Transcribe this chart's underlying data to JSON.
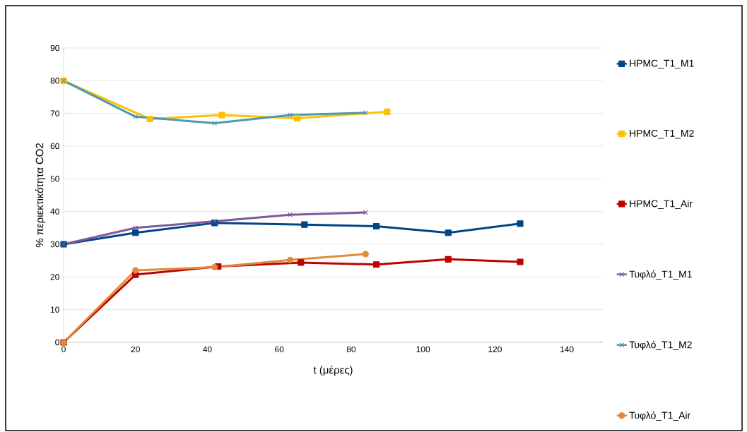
{
  "chart_data": {
    "type": "line",
    "xlabel": "t (μέρες)",
    "ylabel": "% περιεκτικότητα CO2",
    "xlim": [
      0,
      150
    ],
    "xticks": [
      0,
      20,
      40,
      60,
      80,
      100,
      120,
      140
    ],
    "ylim": [
      0,
      90
    ],
    "yticks": [
      0,
      10,
      20,
      30,
      40,
      50,
      60,
      70,
      80,
      90
    ],
    "grid": "y",
    "legend": "right",
    "line_style": "solid",
    "series": [
      {
        "name": "HPMC_T1_M1",
        "color": "#004586",
        "marker": "square",
        "x": [
          0,
          20,
          42,
          67,
          87,
          107,
          127
        ],
        "values": [
          30,
          33.5,
          36.5,
          36,
          35.5,
          33.5,
          36.3
        ]
      },
      {
        "name": "HPMC_T1_M2",
        "color": "#ffc000",
        "marker": "square",
        "x": [
          0,
          24,
          44,
          65,
          90
        ],
        "values": [
          80,
          68.3,
          69.5,
          68.5,
          70.5
        ]
      },
      {
        "name": "HPMC_T1_Air",
        "color": "#c00000",
        "marker": "square",
        "x": [
          0,
          20,
          43,
          66,
          87,
          107,
          127
        ],
        "values": [
          0,
          20.7,
          23.2,
          24.4,
          23.8,
          25.4,
          24.6
        ]
      },
      {
        "name": "Τυφλό_T1_M1",
        "color": "#7e5a9b",
        "marker": "cross",
        "x": [
          0,
          20,
          42,
          63,
          84
        ],
        "values": [
          30,
          35,
          37,
          39,
          39.7
        ]
      },
      {
        "name": "Τυφλό_T1_M2",
        "color": "#4a9ab0",
        "marker": "cross",
        "x": [
          0,
          20,
          42,
          63,
          84
        ],
        "values": [
          80,
          69,
          67,
          69.5,
          70.2
        ]
      },
      {
        "name": "Τυφλό_T1_Air",
        "color": "#e08a3c",
        "marker": "circle",
        "x": [
          0,
          20,
          42,
          63,
          84
        ],
        "values": [
          0,
          22,
          23,
          25.2,
          27
        ]
      }
    ]
  }
}
